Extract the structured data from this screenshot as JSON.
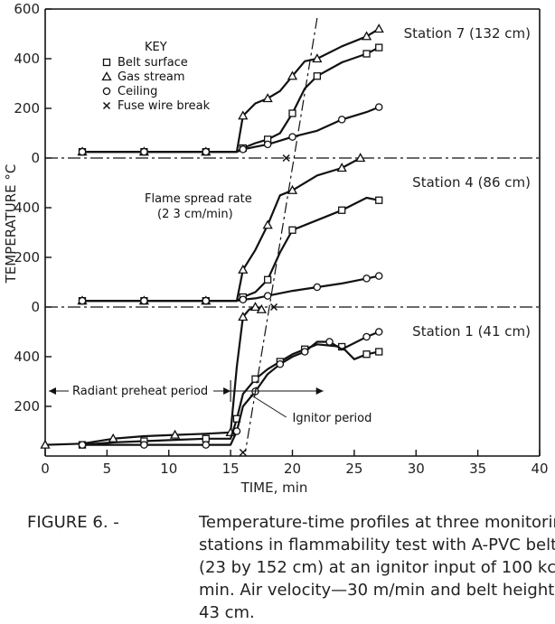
{
  "chart_data": {
    "type": "line",
    "xlabel": "TIME, min",
    "ylabel": "TEMPERATURE °C",
    "xlim": [
      0,
      40
    ],
    "x_ticks": [
      "0",
      "5",
      "10",
      "15",
      "20",
      "25",
      "30",
      "35",
      "40"
    ],
    "key": {
      "title": "KEY",
      "entries": [
        {
          "symbol": "square",
          "label": "Belt surface"
        },
        {
          "symbol": "triangle",
          "label": "Gas stream"
        },
        {
          "symbol": "circle",
          "label": "Ceiling"
        },
        {
          "symbol": "x",
          "label": "Fuse wire break"
        }
      ]
    },
    "panels": [
      {
        "label": "Station 7 (132 cm)",
        "ylim": [
          0,
          600
        ],
        "y_ticks": [
          "0",
          "200",
          "400",
          "600"
        ],
        "fuse_break_x": 19.5,
        "series": [
          {
            "marker": "triangle",
            "x": [
              3,
              5.5,
              8,
              10.5,
              13,
              15.5,
              16,
              17,
              18,
              19,
              20,
              21,
              22,
              24,
              26,
              27
            ],
            "y": [
              25,
              25,
              25,
              25,
              25,
              25,
              170,
              220,
              240,
              270,
              330,
              390,
              400,
              450,
              490,
              520
            ]
          },
          {
            "marker": "square",
            "x": [
              3,
              5.5,
              8,
              10.5,
              13,
              15.5,
              16,
              17,
              18,
              19,
              20,
              21,
              22,
              24,
              26,
              27
            ],
            "y": [
              25,
              25,
              25,
              25,
              25,
              25,
              40,
              60,
              75,
              100,
              180,
              280,
              330,
              385,
              420,
              445
            ]
          },
          {
            "marker": "circle",
            "x": [
              3,
              5.5,
              8,
              10.5,
              13,
              15.5,
              16,
              17,
              18,
              19,
              20,
              22,
              24,
              26,
              27
            ],
            "y": [
              25,
              25,
              25,
              25,
              25,
              25,
              35,
              45,
              55,
              70,
              85,
              110,
              155,
              185,
              205
            ]
          }
        ]
      },
      {
        "label": "Station 4 (86 cm)",
        "ylim": [
          0,
          600
        ],
        "y_ticks": [
          "0",
          "200",
          "400"
        ],
        "fuse_break_x": 18.5,
        "annotations": [
          "Flame spread rate",
          "(2 3 cm/min)"
        ],
        "series": [
          {
            "marker": "triangle",
            "x": [
              3,
              5.5,
              8,
              10.5,
              13,
              15.5,
              16,
              17,
              18,
              19,
              20,
              22,
              24,
              25.5
            ],
            "y": [
              25,
              25,
              25,
              25,
              25,
              25,
              150,
              230,
              330,
              450,
              470,
              530,
              560,
              600
            ]
          },
          {
            "marker": "square",
            "x": [
              3,
              5.5,
              8,
              10.5,
              13,
              15.5,
              16,
              17,
              18,
              19,
              20,
              22,
              24,
              26,
              27
            ],
            "y": [
              25,
              25,
              25,
              25,
              25,
              25,
              40,
              60,
              110,
              220,
              310,
              350,
              390,
              440,
              430
            ]
          },
          {
            "marker": "circle",
            "x": [
              3,
              5.5,
              8,
              10.5,
              13,
              15.5,
              16,
              17,
              18,
              20,
              22,
              24,
              26,
              27
            ],
            "y": [
              25,
              25,
              25,
              25,
              25,
              25,
              30,
              35,
              45,
              65,
              80,
              95,
              115,
              125
            ]
          }
        ]
      },
      {
        "label": "Station 1 (41 cm)",
        "ylim": [
          0,
          600
        ],
        "y_ticks": [
          "200",
          "400"
        ],
        "fuse_break_x": 16,
        "annotations": [
          "Radiant preheat period",
          "Ignitor period"
        ],
        "series": [
          {
            "marker": "triangle",
            "x": [
              0,
              3,
              5.5,
              8,
              10.5,
              13,
              15,
              15.5,
              16,
              16.5,
              17,
              17.5
            ],
            "y": [
              45,
              50,
              70,
              80,
              85,
              90,
              95,
              360,
              560,
              590,
              600,
              590
            ]
          },
          {
            "marker": "square",
            "x": [
              3,
              5.5,
              8,
              10.5,
              13,
              15,
              15.5,
              16,
              17,
              18,
              19,
              20,
              21,
              22,
              24,
              25,
              26,
              27
            ],
            "y": [
              45,
              55,
              60,
              65,
              70,
              70,
              150,
              250,
              310,
              350,
              380,
              410,
              430,
              450,
              440,
              390,
              410,
              420
            ]
          },
          {
            "marker": "circle",
            "x": [
              3,
              5.5,
              8,
              10.5,
              13,
              15,
              15.5,
              16,
              17,
              18,
              19,
              20,
              21,
              22,
              23,
              24,
              26,
              27
            ],
            "y": [
              45,
              45,
              45,
              45,
              45,
              45,
              100,
              200,
              260,
              330,
              370,
              400,
              420,
              460,
              460,
              430,
              480,
              500
            ]
          }
        ]
      }
    ]
  },
  "caption": {
    "label": "FIGURE 6. -",
    "lines": [
      "Temperature-time profiles at three monitoring",
      "stations in flammability test with A-PVC belt",
      "(23 by 152 cm) at an ignitor input of 100 kcal/",
      "min. Air velocity—30 m/min and belt height—",
      "43 cm."
    ]
  }
}
